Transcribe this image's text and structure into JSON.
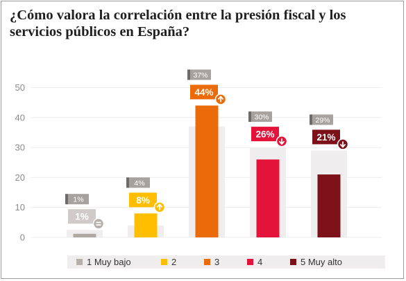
{
  "chart_data": {
    "type": "bar",
    "title": "¿Cómo valora la correlación entre la presión fiscal y los servicios públicos en España?",
    "xlabel": "",
    "ylabel": "",
    "ylim": [
      0,
      60
    ],
    "yticks": [
      0,
      10,
      20,
      30,
      40,
      50
    ],
    "grid": true,
    "legend_position": "bottom",
    "categories": [
      "1 Muy bajo",
      "2",
      "3",
      "4",
      "5 Muy alto"
    ],
    "colors": [
      "#b7afaa",
      "#ffbf00",
      "#eb6b0a",
      "#e3133a",
      "#7c1119"
    ],
    "series": [
      {
        "values": [
          1,
          8,
          44,
          26,
          21
        ]
      },
      {
        "values": [
          1,
          4,
          37,
          30,
          29
        ]
      }
    ],
    "current_labels": [
      "1%",
      "8%",
      "44%",
      "26%",
      "21%"
    ],
    "previous_labels": [
      "1%",
      "4%",
      "37%",
      "30%",
      "29%"
    ],
    "trend_icons": [
      "equal-icon",
      "arrow-up-icon",
      "arrow-up-icon",
      "arrow-down-icon",
      "arrow-down-icon"
    ]
  }
}
